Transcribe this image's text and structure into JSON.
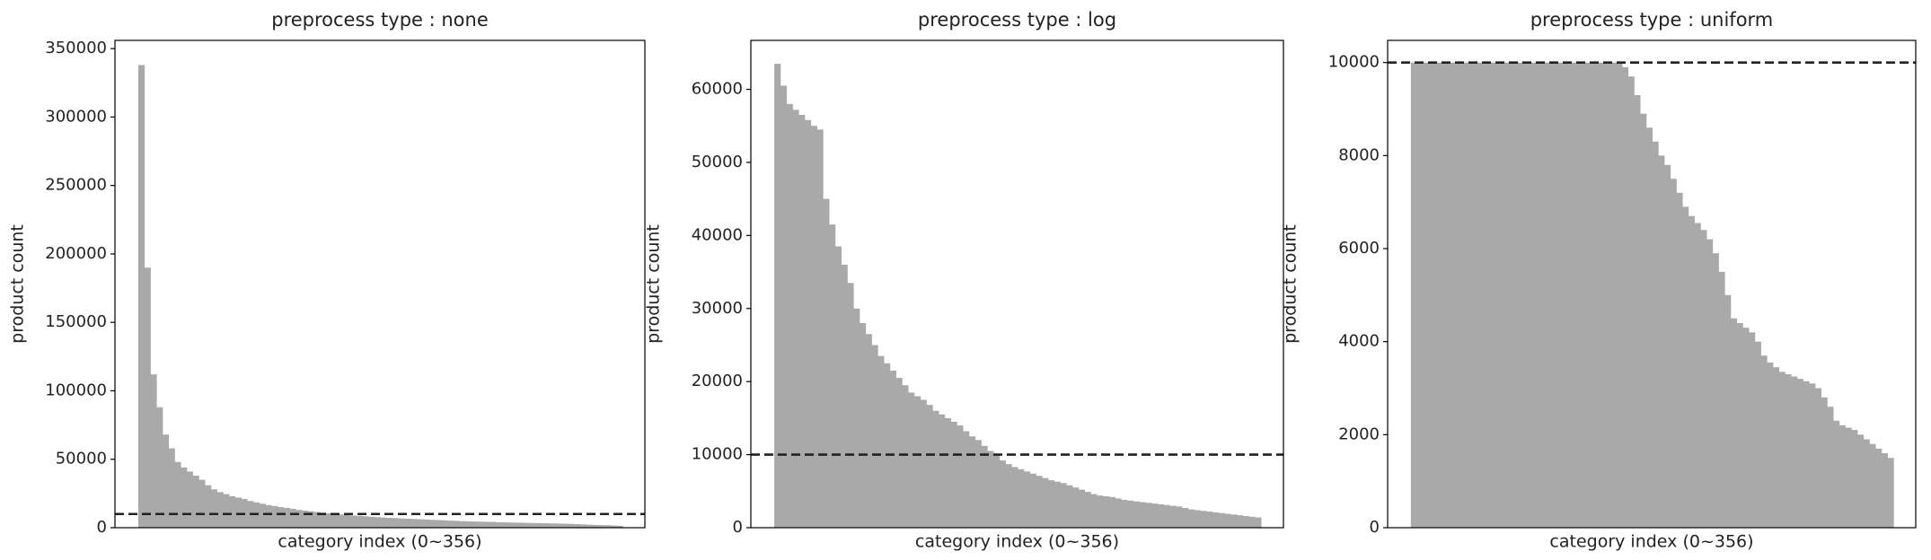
{
  "chart_data": [
    {
      "type": "bar",
      "title": "preprocess type : none",
      "xlabel": "category index (0~356)",
      "ylabel": "product count",
      "color": "#a9a9a9",
      "ylim": [
        0,
        356000
      ],
      "yticks": [
        0,
        50000,
        100000,
        150000,
        200000,
        250000,
        300000,
        350000
      ],
      "hline": 10000,
      "values": [
        338000,
        190000,
        112000,
        88000,
        68000,
        58000,
        48000,
        44000,
        41000,
        38000,
        35000,
        31000,
        28000,
        26000,
        24500,
        23000,
        22000,
        21000,
        19500,
        18500,
        17500,
        16500,
        15800,
        15000,
        14500,
        13800,
        13000,
        12500,
        12000,
        11500,
        11000,
        10500,
        10000,
        9600,
        9200,
        8900,
        8600,
        8300,
        8000,
        7700,
        7400,
        7200,
        7000,
        6800,
        6600,
        6400,
        6200,
        6000,
        5800,
        5600,
        5400,
        5200,
        5000,
        4800,
        4600,
        4500,
        4400,
        4300,
        4200,
        4000,
        3900,
        3800,
        3700,
        3600,
        3500,
        3400,
        3300,
        3200,
        3100,
        3000,
        2900,
        2800,
        2600,
        2400,
        2200,
        2000,
        1900,
        1800,
        1600,
        1400
      ]
    },
    {
      "type": "bar",
      "title": "preprocess type : log",
      "xlabel": "category index (0~356)",
      "ylabel": "product count",
      "color": "#a9a9a9",
      "ylim": [
        0,
        66700
      ],
      "yticks": [
        0,
        10000,
        20000,
        30000,
        40000,
        50000,
        60000
      ],
      "hline": 10000,
      "values": [
        63500,
        60500,
        58000,
        57200,
        56500,
        55800,
        55000,
        54500,
        45000,
        41500,
        38500,
        36000,
        33500,
        30000,
        28000,
        26500,
        25000,
        23500,
        22500,
        21500,
        20500,
        19500,
        18500,
        18000,
        17500,
        16800,
        16000,
        15500,
        15000,
        14500,
        14000,
        13200,
        12500,
        12000,
        11200,
        10500,
        10000,
        9200,
        8700,
        8300,
        8000,
        7700,
        7400,
        7100,
        6800,
        6500,
        6300,
        6100,
        5800,
        5500,
        5200,
        4900,
        4600,
        4400,
        4300,
        4200,
        4000,
        3800,
        3700,
        3600,
        3500,
        3400,
        3300,
        3200,
        3100,
        3000,
        2900,
        2700,
        2500,
        2400,
        2300,
        2200,
        2100,
        2000,
        1900,
        1800,
        1700,
        1600,
        1500,
        1400
      ]
    },
    {
      "type": "bar",
      "title": "preprocess type : uniform",
      "xlabel": "category index (0~356)",
      "ylabel": "product count",
      "color": "#a9a9a9",
      "ylim": [
        0,
        10476
      ],
      "yticks": [
        0,
        2000,
        4000,
        6000,
        8000,
        10000
      ],
      "hline": 10000,
      "values": [
        10000,
        10000,
        10000,
        10000,
        10000,
        10000,
        10000,
        10000,
        10000,
        10000,
        10000,
        10000,
        10000,
        10000,
        10000,
        10000,
        10000,
        10000,
        10000,
        10000,
        10000,
        10000,
        10000,
        10000,
        10000,
        10000,
        10000,
        10000,
        10000,
        10000,
        10000,
        10000,
        10000,
        10000,
        10000,
        9900,
        9700,
        9300,
        8900,
        8600,
        8300,
        8000,
        7800,
        7500,
        7200,
        6900,
        6700,
        6550,
        6400,
        6200,
        5900,
        5500,
        5000,
        4500,
        4400,
        4300,
        4200,
        4000,
        3700,
        3550,
        3450,
        3350,
        3300,
        3250,
        3200,
        3150,
        3100,
        3000,
        2800,
        2600,
        2300,
        2200,
        2150,
        2100,
        2000,
        1900,
        1800,
        1700,
        1600,
        1500
      ]
    }
  ]
}
